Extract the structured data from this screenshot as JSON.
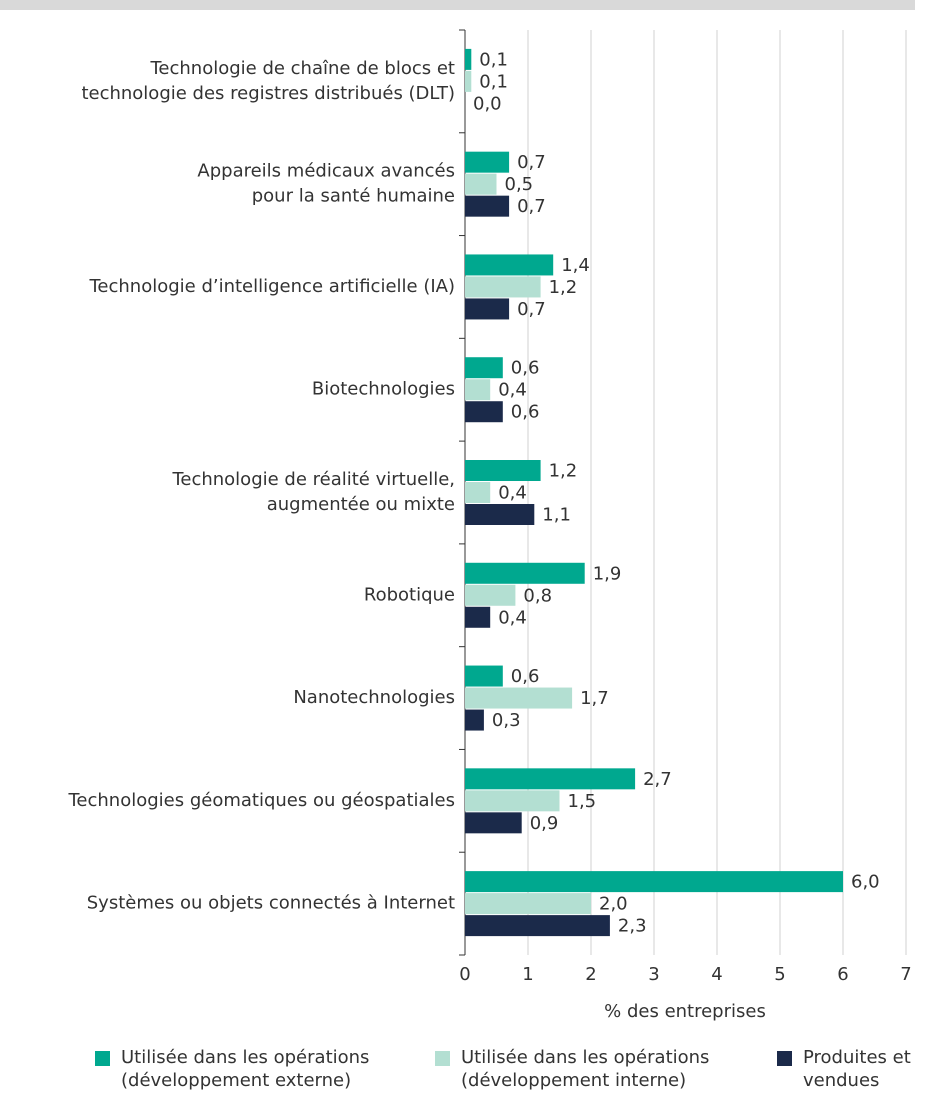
{
  "chart_data": {
    "type": "hbar",
    "categories": [
      [
        "Technologie de chaîne de blocs et",
        "technologie des registres distribués (DLT)"
      ],
      [
        "Appareils médicaux avancés",
        "pour la santé humaine"
      ],
      [
        "Technologie d’intelligence artificielle (IA)"
      ],
      [
        "Biotechnologies"
      ],
      [
        "Technologie de réalité virtuelle,",
        "augmentée ou mixte"
      ],
      [
        "Robotique"
      ],
      [
        "Nanotechnologies"
      ],
      [
        "Technologies géomatiques ou géospatiales"
      ],
      [
        "Systèmes ou objets connectés à Internet"
      ]
    ],
    "series": [
      {
        "name": "Utilisée dans les opérations (développement externe)",
        "color": "#00a88f",
        "values": [
          0.1,
          0.7,
          1.4,
          0.6,
          1.2,
          1.9,
          0.6,
          2.7,
          6.0
        ],
        "value_labels": [
          "0,1",
          "0,7",
          "1,4",
          "0,6",
          "1,2",
          "1,9",
          "0,6",
          "2,7",
          "6,0"
        ]
      },
      {
        "name": "Utilisée dans les opérations (développement interne)",
        "color": "#b3dfd2",
        "values": [
          0.1,
          0.5,
          1.2,
          0.4,
          0.4,
          0.8,
          1.7,
          1.5,
          2.0
        ],
        "value_labels": [
          "0,1",
          "0,5",
          "1,2",
          "0,4",
          "0,4",
          "0,8",
          "1,7",
          "1,5",
          "2,0"
        ]
      },
      {
        "name": "Produites et vendues",
        "color": "#1b2a4a",
        "values": [
          0.0,
          0.7,
          0.7,
          0.6,
          1.1,
          0.4,
          0.3,
          0.9,
          2.3
        ],
        "value_labels": [
          "0,0",
          "0,7",
          "0,7",
          "0,6",
          "1,1",
          "0,4",
          "0,3",
          "0,9",
          "2,3"
        ]
      }
    ],
    "xlabel": "% des entreprises",
    "xlim": [
      0,
      7
    ],
    "xticks": [
      0,
      1,
      2,
      3,
      4,
      5,
      6,
      7
    ],
    "grid": true
  }
}
